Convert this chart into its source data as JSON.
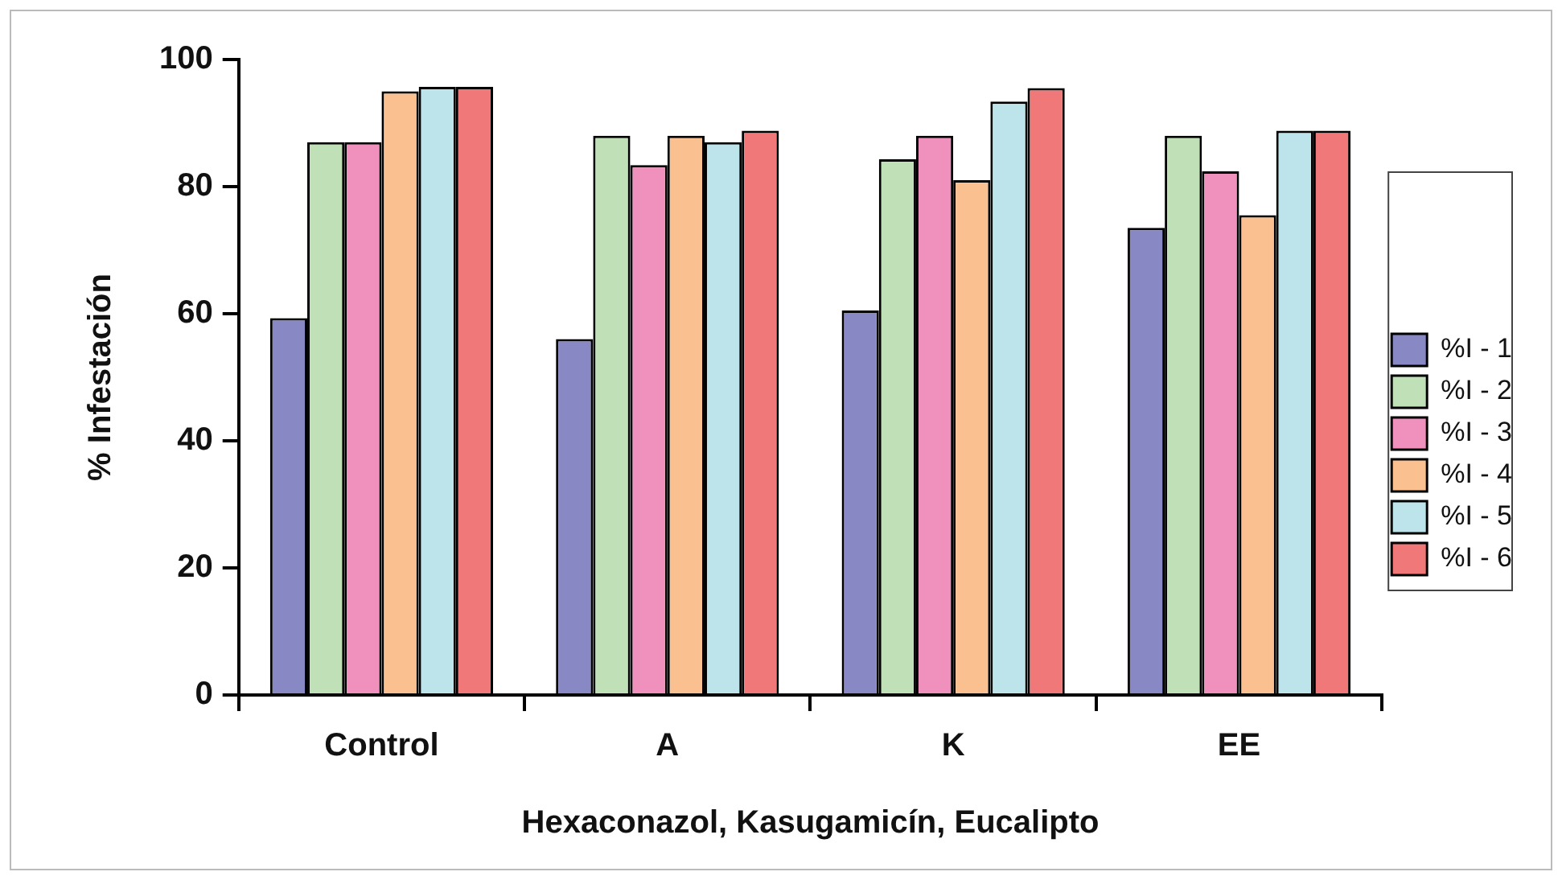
{
  "chart_data": {
    "type": "bar",
    "xlabel": "Hexaconazol, Kasugamicín, Eucalipto",
    "ylabel": "% Infestación",
    "categories": [
      "Control",
      "A",
      "K",
      "EE"
    ],
    "series": [
      {
        "name": "%I - 1",
        "color": "#8888c4",
        "values": [
          59.3,
          56,
          60.5,
          73.5
        ]
      },
      {
        "name": "%I - 2",
        "color": "#c0e0b8",
        "values": [
          87,
          88,
          84.3,
          88
        ]
      },
      {
        "name": "%I - 3",
        "color": "#f090bc",
        "values": [
          87,
          83.4,
          88,
          82.4
        ]
      },
      {
        "name": "%I - 4",
        "color": "#fac090",
        "values": [
          95,
          88,
          81,
          75.5
        ]
      },
      {
        "name": "%I - 5",
        "color": "#bce4ea",
        "values": [
          95.7,
          87,
          93.4,
          88.8
        ]
      },
      {
        "name": "%I - 6",
        "color": "#f07878",
        "values": [
          95.7,
          88.8,
          95.5,
          88.8
        ]
      }
    ],
    "ylim": [
      0,
      100
    ],
    "yticks": [
      0,
      20,
      40,
      60,
      80,
      100
    ],
    "grid": false,
    "legend": "right"
  }
}
